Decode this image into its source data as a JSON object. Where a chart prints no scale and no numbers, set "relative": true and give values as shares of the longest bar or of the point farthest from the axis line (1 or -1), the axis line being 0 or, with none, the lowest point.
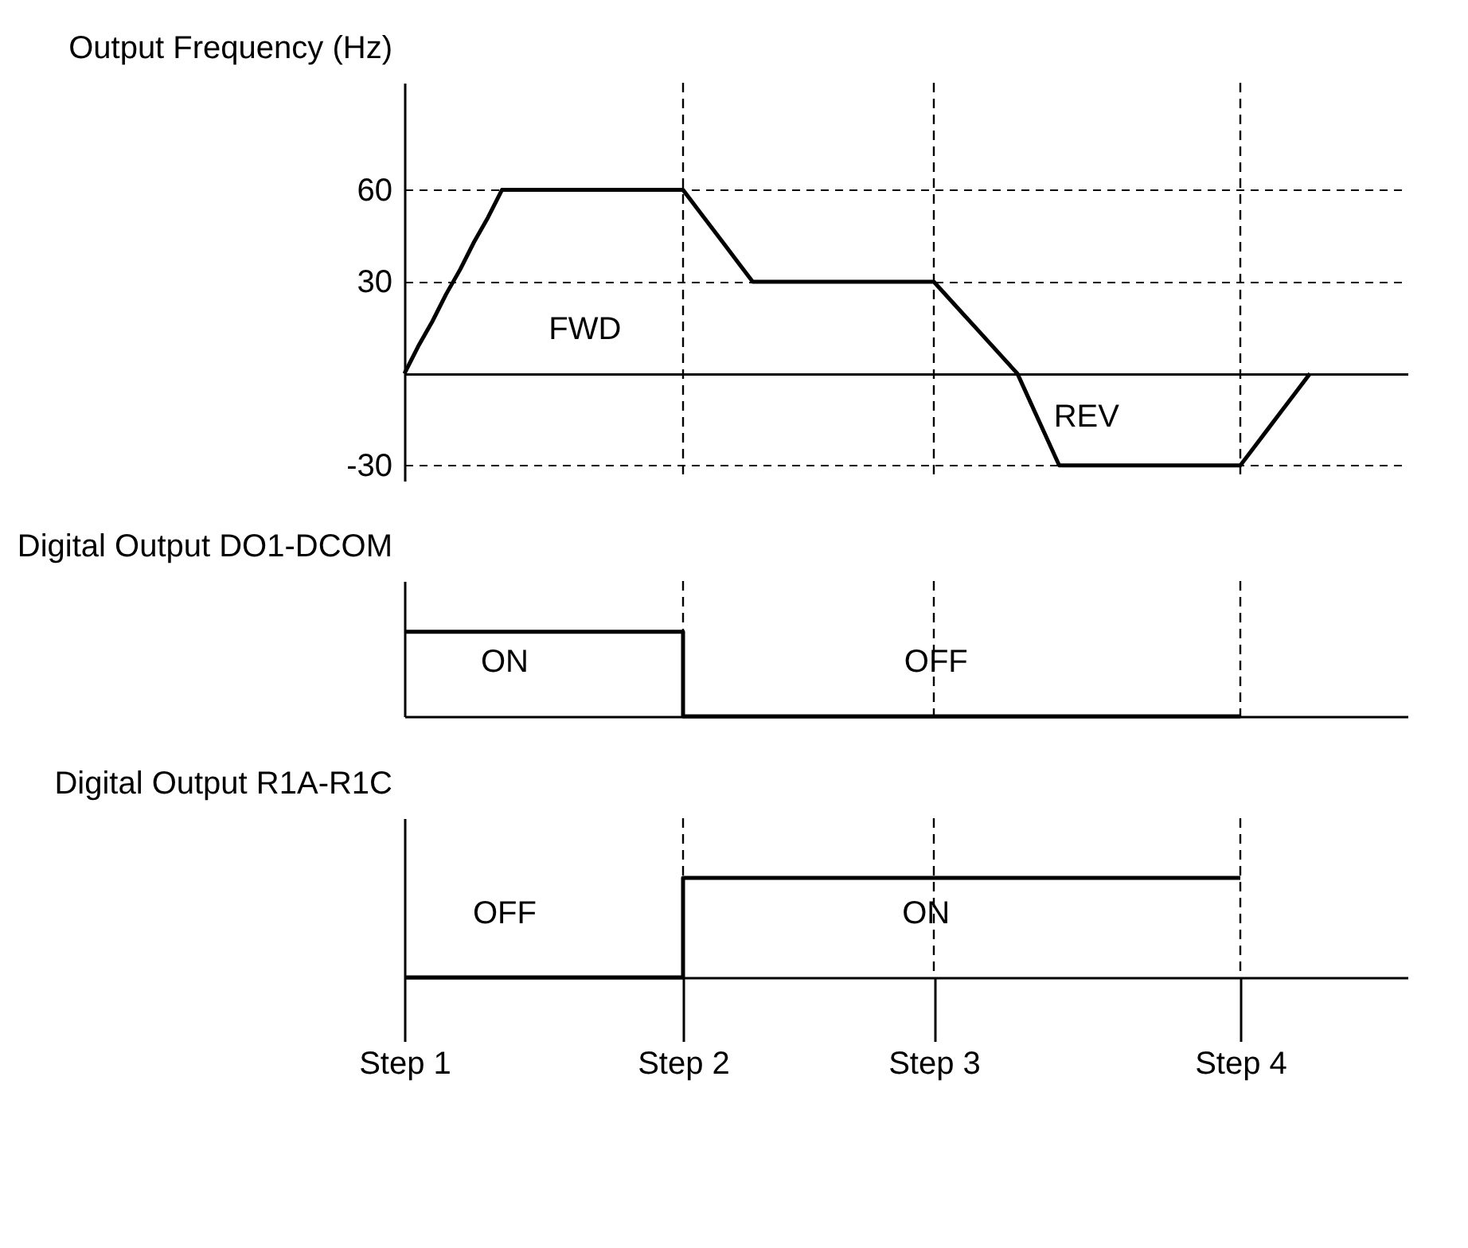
{
  "chart_data": [
    {
      "type": "line",
      "ylabel": "Output Frequency (Hz)",
      "categories": [
        "Step 1",
        null,
        null,
        null,
        null,
        null,
        null,
        null,
        null,
        null,
        null,
        null,
        null,
        null,
        null,
        null,
        null,
        null,
        null,
        null,
        "Step 2",
        null,
        null,
        null,
        null,
        null,
        null,
        null,
        null,
        null,
        null,
        null,
        null,
        null,
        null,
        null,
        null,
        null,
        "Step 3",
        null,
        null,
        null,
        null,
        null,
        null,
        null,
        null,
        null,
        null,
        null,
        null,
        null,
        null,
        null,
        null,
        null,
        null,
        null,
        null,
        null,
        "Step 4",
        null,
        null,
        null,
        null,
        null,
        null,
        null,
        null,
        null,
        null,
        null,
        null
      ],
      "series": [
        {
          "color": "#000000",
          "values": [
            0,
            9,
            17,
            26,
            34,
            43,
            51,
            60,
            60,
            60,
            60,
            60,
            60,
            60,
            60,
            60,
            60,
            60,
            60,
            60,
            60,
            54,
            48,
            42,
            36,
            30,
            30,
            30,
            30,
            30,
            30,
            30,
            30,
            30,
            30,
            30,
            30,
            30,
            30,
            25,
            20,
            15,
            10,
            5,
            0,
            -10,
            -20,
            -30,
            -30,
            -30,
            -30,
            -30,
            -30,
            -30,
            -30,
            -30,
            -30,
            -30,
            -30,
            -30,
            -30,
            -24,
            -18,
            -12,
            -6,
            0,
            null,
            null,
            null,
            null,
            null,
            null,
            null
          ]
        }
      ],
      "ylim": [
        -35,
        95
      ],
      "yticks": [
        -30,
        30,
        60
      ],
      "grid": "y",
      "line_style": "solid",
      "tick_labels": "y",
      "ref_lines": [
        {
          "axis": "x",
          "value": "Step 2",
          "line_style": "dashed"
        },
        {
          "axis": "x",
          "value": "Step 3",
          "line_style": "dashed"
        },
        {
          "axis": "x",
          "value": "Step 4",
          "line_style": "dashed"
        }
      ],
      "annotations": [
        "FWD",
        "REV"
      ]
    },
    {
      "type": "step",
      "ylabel": "Digital Output DO1-DCOM",
      "relative": true,
      "categories": [
        "Step 1",
        null,
        null,
        null,
        null,
        null,
        null,
        null,
        null,
        null,
        null,
        null,
        null,
        null,
        null,
        null,
        null,
        null,
        null,
        null,
        "Step 2",
        null,
        null,
        null,
        null,
        null,
        null,
        null,
        null,
        null,
        null,
        null,
        null,
        null,
        null,
        null,
        null,
        null,
        "Step 3",
        null,
        null,
        null,
        null,
        null,
        null,
        null,
        null,
        null,
        null,
        null,
        null,
        null,
        null,
        null,
        null,
        null,
        null,
        null,
        null,
        null,
        "Step 4",
        null,
        null,
        null,
        null,
        null,
        null,
        null,
        null,
        null,
        null,
        null,
        null
      ],
      "series": [
        {
          "color": "#000000",
          "values": [
            1,
            1,
            1,
            1,
            1,
            1,
            1,
            1,
            1,
            1,
            1,
            1,
            1,
            1,
            1,
            1,
            1,
            1,
            1,
            1,
            0,
            0,
            0,
            0,
            0,
            0,
            0,
            0,
            0,
            0,
            0,
            0,
            0,
            0,
            0,
            0,
            0,
            0,
            0,
            0,
            0,
            0,
            0,
            0,
            0,
            0,
            0,
            0,
            0,
            0,
            0,
            0,
            0,
            0,
            0,
            0,
            0,
            0,
            0,
            0,
            0,
            null,
            null,
            null,
            null,
            null,
            null,
            null,
            null,
            null,
            null,
            null,
            null
          ]
        }
      ],
      "tick_labels": false,
      "ref_lines": [
        {
          "axis": "x",
          "value": "Step 2",
          "line_style": "dashed"
        },
        {
          "axis": "x",
          "value": "Step 3",
          "line_style": "dashed"
        },
        {
          "axis": "x",
          "value": "Step 4",
          "line_style": "dashed"
        }
      ],
      "annotations": [
        "ON",
        "OFF"
      ]
    },
    {
      "type": "step",
      "ylabel": "Digital Output R1A-R1C",
      "relative": true,
      "categories": [
        "Step 1",
        null,
        null,
        null,
        null,
        null,
        null,
        null,
        null,
        null,
        null,
        null,
        null,
        null,
        null,
        null,
        null,
        null,
        null,
        null,
        "Step 2",
        null,
        null,
        null,
        null,
        null,
        null,
        null,
        null,
        null,
        null,
        null,
        null,
        null,
        null,
        null,
        null,
        null,
        "Step 3",
        null,
        null,
        null,
        null,
        null,
        null,
        null,
        null,
        null,
        null,
        null,
        null,
        null,
        null,
        null,
        null,
        null,
        null,
        null,
        null,
        null,
        "Step 4",
        null,
        null,
        null,
        null,
        null,
        null,
        null,
        null,
        null,
        null,
        null,
        null
      ],
      "series": [
        {
          "color": "#000000",
          "values": [
            0,
            0,
            0,
            0,
            0,
            0,
            0,
            0,
            0,
            0,
            0,
            0,
            0,
            0,
            0,
            0,
            0,
            0,
            0,
            0,
            1,
            1,
            1,
            1,
            1,
            1,
            1,
            1,
            1,
            1,
            1,
            1,
            1,
            1,
            1,
            1,
            1,
            1,
            1,
            1,
            1,
            1,
            1,
            1,
            1,
            1,
            1,
            1,
            1,
            1,
            1,
            1,
            1,
            1,
            1,
            1,
            1,
            1,
            1,
            1,
            1,
            null,
            null,
            null,
            null,
            null,
            null,
            null,
            null,
            null,
            null,
            null,
            null
          ]
        }
      ],
      "tick_labels": "x",
      "ref_lines": [
        {
          "axis": "x",
          "value": "Step 2",
          "line_style": "dashed"
        },
        {
          "axis": "x",
          "value": "Step 3",
          "line_style": "dashed"
        },
        {
          "axis": "x",
          "value": "Step 4",
          "line_style": "dashed"
        }
      ],
      "annotations": [
        "OFF",
        "ON"
      ]
    }
  ]
}
